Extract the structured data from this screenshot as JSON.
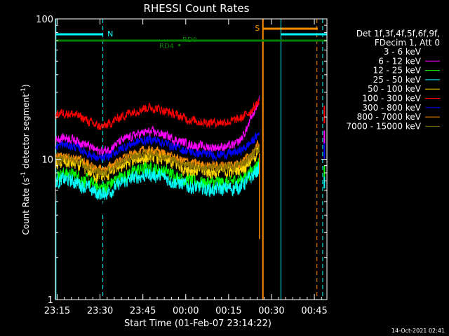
{
  "chart_data": {
    "type": "line",
    "title": "RHESSI Count Rates",
    "xlabel": "Start Time (01-Feb-07 23:14:22)",
    "ylabel_main": "Count Rate (s",
    "ylabel_sup": "-1",
    "ylabel_mid": " detector segment",
    "ylabel_end": ")",
    "y_scale": "log",
    "ylim": [
      1,
      100
    ],
    "y_ticks": [
      "1",
      "10",
      "100"
    ],
    "x_range_minutes": [
      0,
      95
    ],
    "x_ticks": [
      "23:15",
      "23:30",
      "23:45",
      "00:00",
      "00:15",
      "00:30",
      "00:45"
    ],
    "x_tick_minutes": [
      0.6,
      15.6,
      30.6,
      45.6,
      60.6,
      75.6,
      90.6
    ],
    "legend": {
      "header1": "Det 1f,3f,4f,5f,6f,9f,",
      "header2": "FDecim 1, Att 0",
      "placement": "top-right outside plot"
    },
    "series": [
      {
        "name": "3 - 6 keV",
        "color": "#000000",
        "base": 5.0
      },
      {
        "name": "6 - 12 keV",
        "color": "#ff00ff",
        "base": 13.0
      },
      {
        "name": "12 - 25 keV",
        "color": "#00ff00",
        "base": 7.2
      },
      {
        "name": "25 - 50 keV",
        "color": "#00ffff",
        "base": 6.5
      },
      {
        "name": "50 - 100 keV",
        "color": "#ffd700",
        "base": 8.7
      },
      {
        "name": "100 - 300 keV",
        "color": "#ff0000",
        "base": 19.5
      },
      {
        "name": "300 - 800 keV",
        "color": "#0000ff",
        "base": 11.5
      },
      {
        "name": "800 - 7000 keV",
        "color": "#ff8c00",
        "base": 9.6
      },
      {
        "name": "7000 - 15000 keV",
        "color": "#8b7500",
        "base": 9.2
      }
    ],
    "annotations": {
      "n_label": "N",
      "s_label": "S",
      "rd0_label": "RD0",
      "rd4_label": "RD4"
    }
  },
  "footer": {
    "date_stamp": "14-Oct-2021 02:41"
  }
}
